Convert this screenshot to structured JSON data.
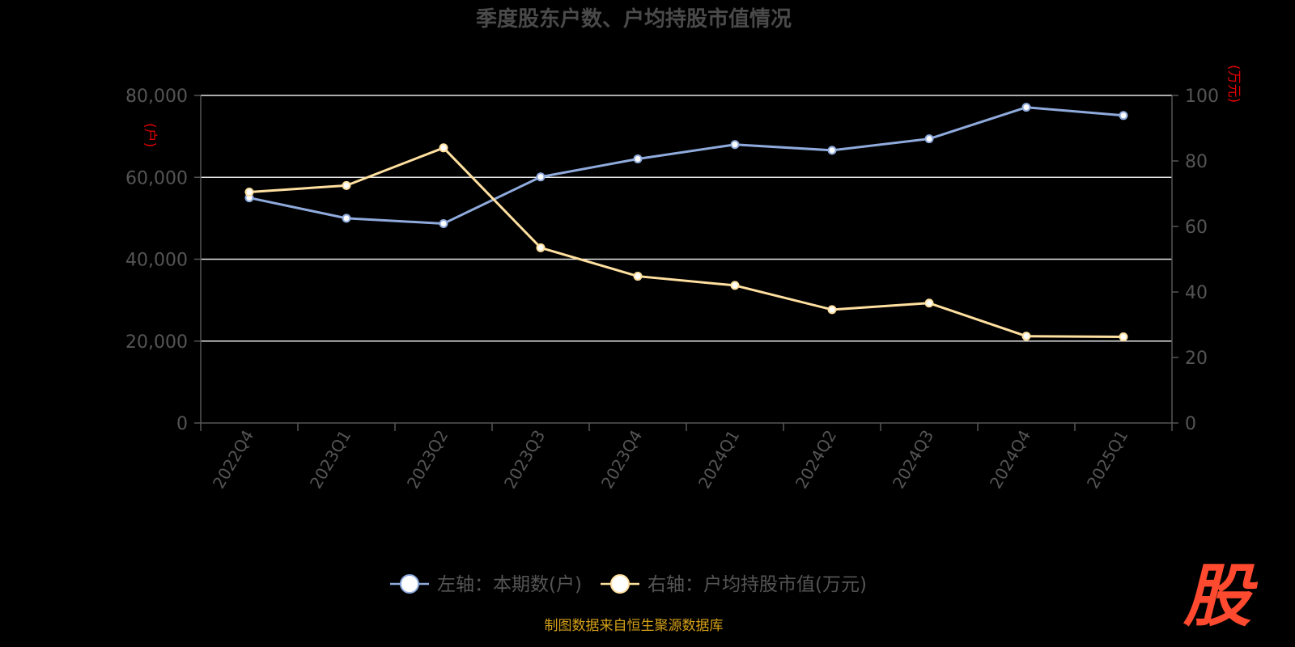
{
  "chart_data": {
    "type": "line",
    "title": "季度股东户数、户均持股市值情况",
    "categories": [
      "2022Q4",
      "2023Q1",
      "2023Q2",
      "2023Q3",
      "2023Q4",
      "2024Q1",
      "2024Q2",
      "2024Q3",
      "2024Q4",
      "2025Q1"
    ],
    "series": [
      {
        "name": "左轴：本期数(户)",
        "axis": "left",
        "color": "#8faadc",
        "values": [
          55000,
          50000,
          48700,
          60100,
          64500,
          68000,
          66600,
          69400,
          77100,
          75100
        ]
      },
      {
        "name": "右轴：户均持股市值(万元)",
        "axis": "right",
        "color": "#ffe0a0",
        "values": [
          70.5,
          72.5,
          84.0,
          53.5,
          44.8,
          42.0,
          34.6,
          36.6,
          26.5,
          26.3
        ]
      }
    ],
    "left_axis": {
      "unit_label": "(户)",
      "ylim": [
        0,
        80000
      ],
      "ticks": [
        "0",
        "20,000",
        "40,000",
        "60,000",
        "80,000"
      ]
    },
    "right_axis": {
      "unit_label": "(万元)",
      "ylim": [
        0,
        100
      ],
      "ticks": [
        "0",
        "20",
        "40",
        "60",
        "80",
        "100"
      ]
    },
    "grid": true,
    "legend_position": "bottom",
    "source_note": "制图数据来自恒生聚源数据库",
    "logo_text": "股"
  }
}
